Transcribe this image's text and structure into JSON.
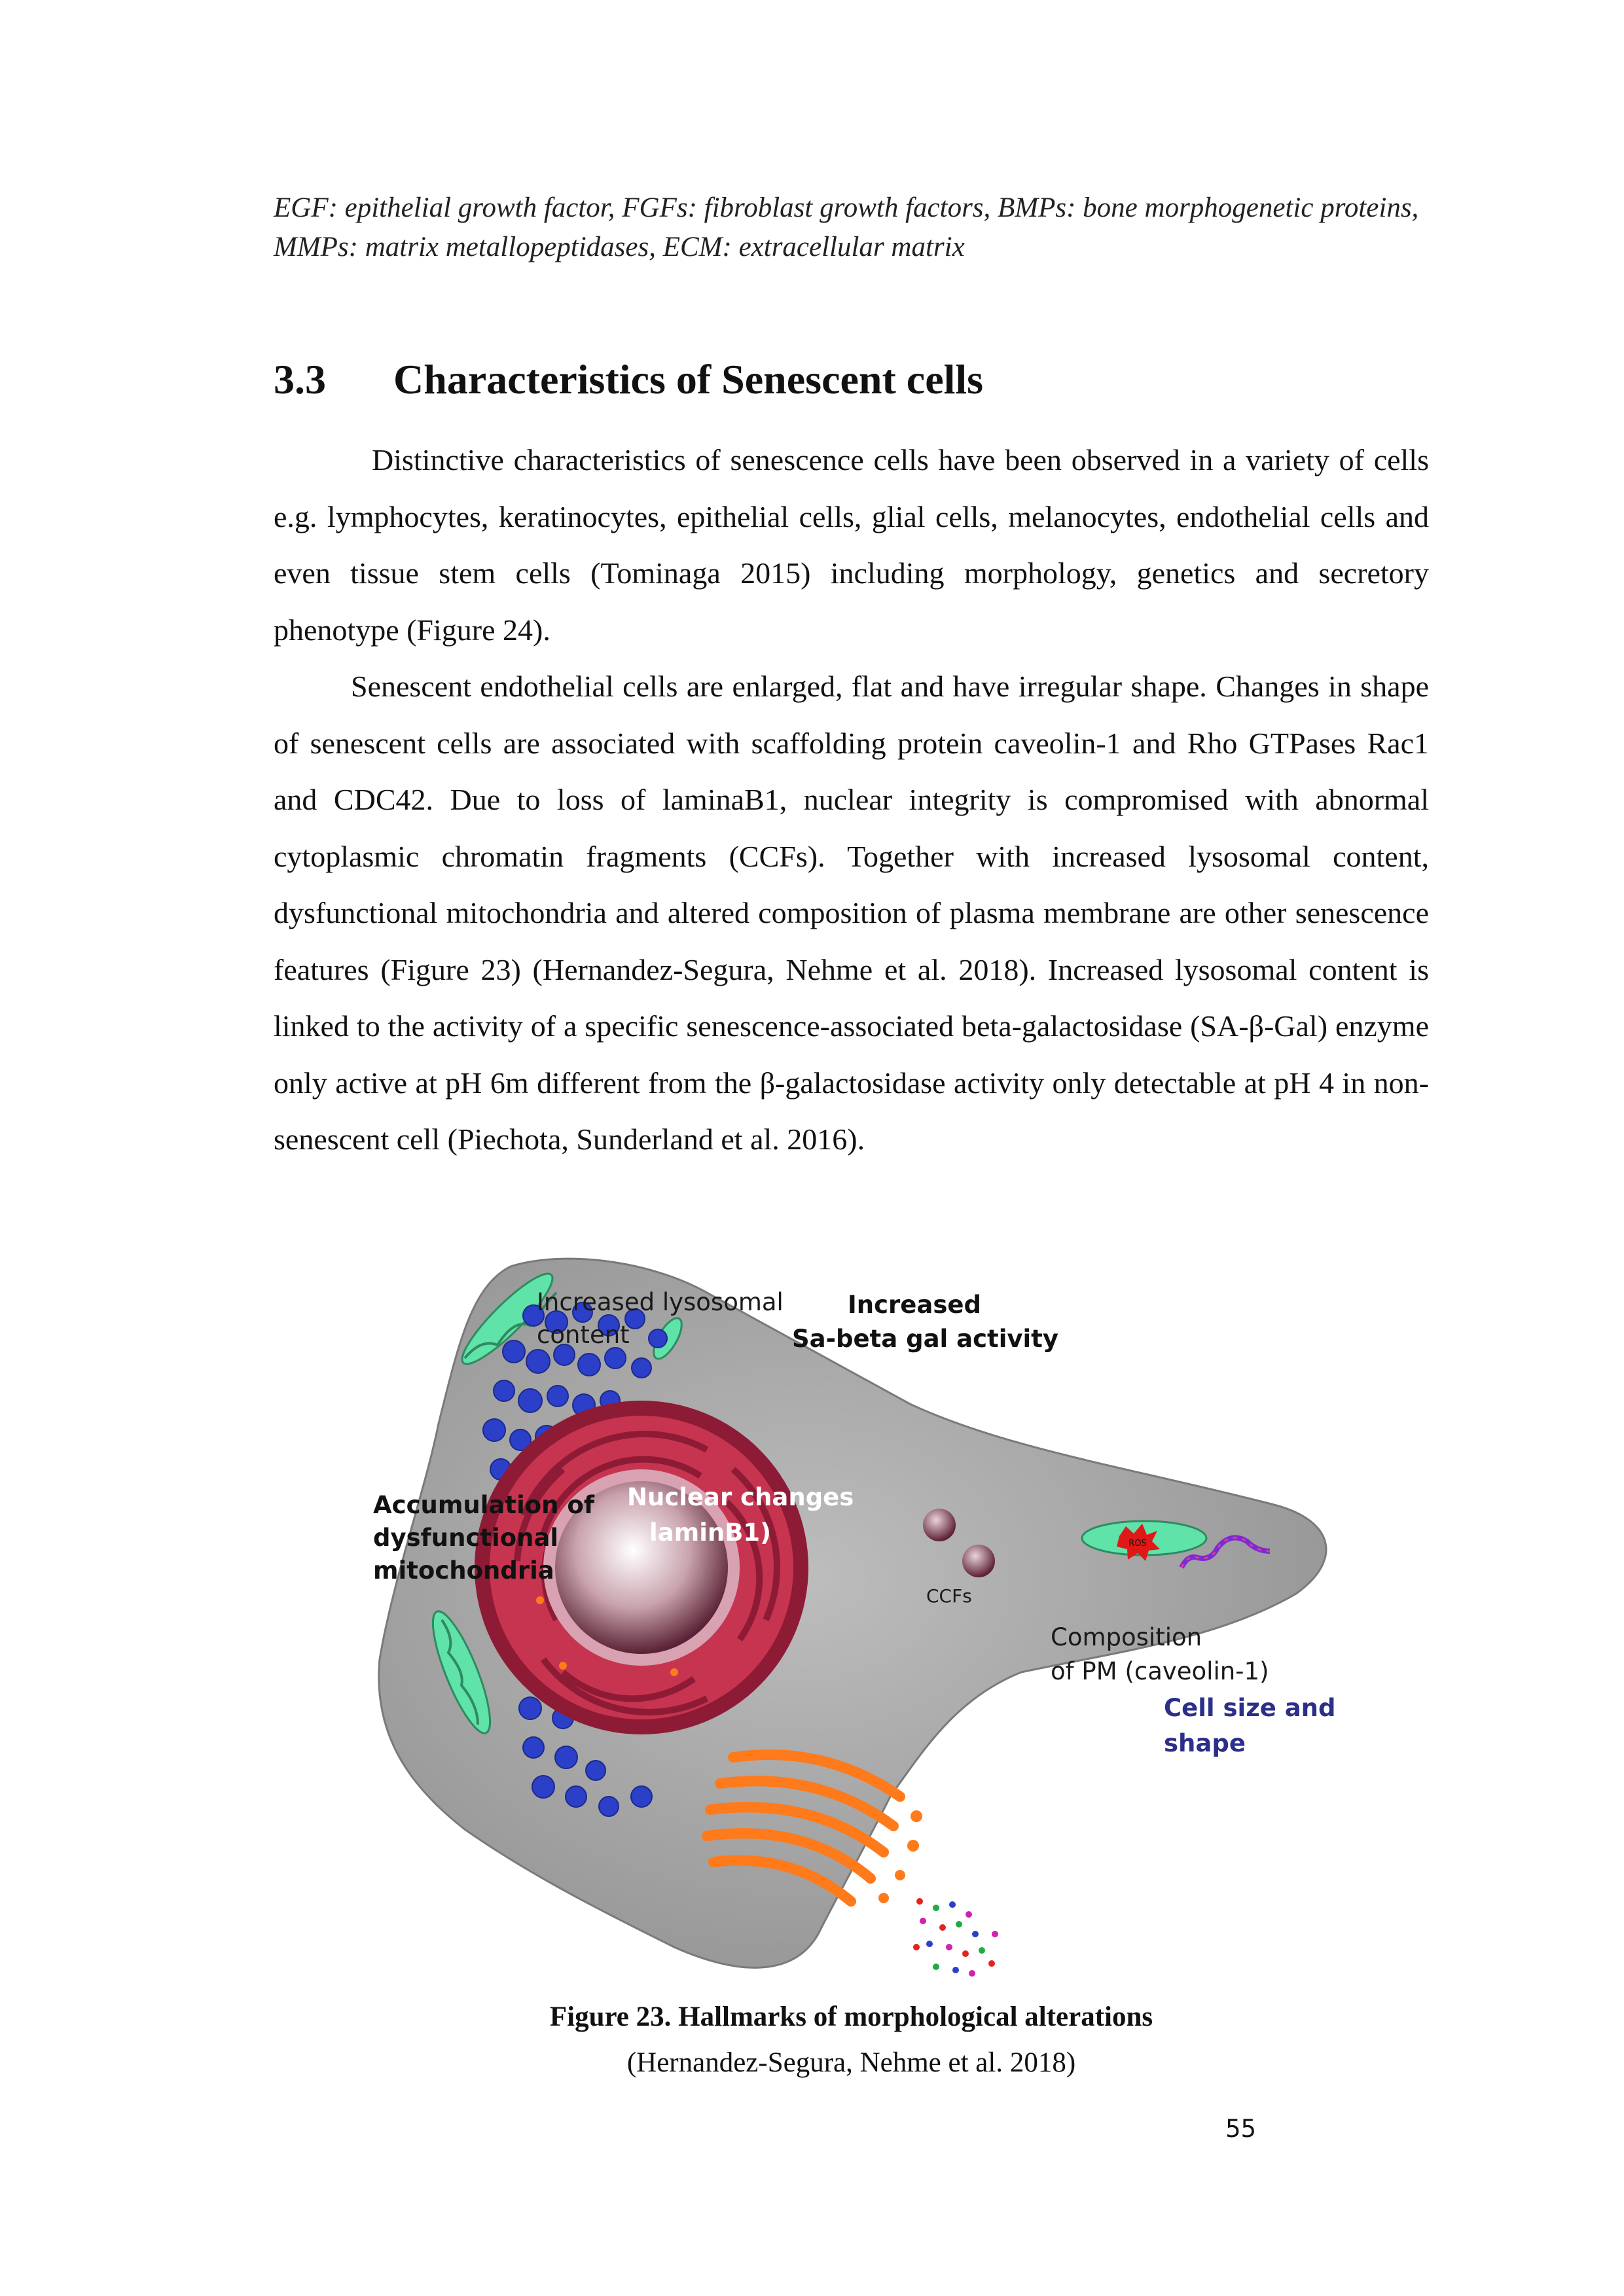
{
  "abbreviations": "EGF: epithelial growth factor, FGFs: fibroblast growth factors, BMPs: bone morphogenetic proteins, MMPs: matrix metallopeptidases, ECM: extracellular matrix",
  "section": {
    "number": "3.3",
    "title": "Characteristics of Senescent cells"
  },
  "paragraphs": [
    "Distinctive characteristics of senescence cells  have been observed in a variety of cells e.g. lymphocytes, keratinocytes, epithelial cells, glial cells, melanocytes, endothelial cells and even tissue stem cells (Tominaga 2015) including morphology, genetics and secretory phenotype (Figure 24).",
    "Senescent endothelial cells are enlarged, flat and have irregular shape. Changes in shape of senescent cells are associated with scaffolding protein caveolin-1 and Rho GTPases Rac1 and CDC42. Due to loss of laminaB1, nuclear integrity is compromised with abnormal cytoplasmic chromatin fragments (CCFs). Together with increased lysosomal content, dysfunctional mitochondria and altered composition of plasma membrane are other senescence features (Figure 23) (Hernandez-Segura, Nehme et al. 2018). Increased lysosomal content is linked to the activity of a specific senescence-associated beta-galactosidase (SA-β-Gal) enzyme only active at pH 6m different from the β-galactosidase activity only detectable at pH 4 in non-senescent cell (Piechota, Sunderland et al. 2016)."
  ],
  "figure": {
    "labels": {
      "lysosomal_1": "Increased lysosomal",
      "lysosomal_2": "content",
      "sabgal_1": "Increased",
      "sabgal_2": "Sa-beta gal activity",
      "mito_1": "Accumulation of",
      "mito_2": "dysfunctional",
      "mito_3": "mitochondria",
      "nuclear_1": "Nuclear  changes",
      "nuclear_2": "laminB1)",
      "ccfs": "CCFs",
      "pm_1": "Composition",
      "pm_2": "of PM (caveolin-1)",
      "size_1": "Cell size and",
      "size_2": "shape",
      "ros": "ROS"
    },
    "colors": {
      "cell": "#9a9a9a",
      "lysosome": "#2b3fc9",
      "mitochondria": "#5fe3a8",
      "nucleus": "#b8253f",
      "golgi": "#ff7a1a"
    }
  },
  "caption": {
    "title": "Figure 23. Hallmarks of morphological alterations",
    "source": "(Hernandez-Segura, Nehme et al. 2018)"
  },
  "page_number": "55"
}
